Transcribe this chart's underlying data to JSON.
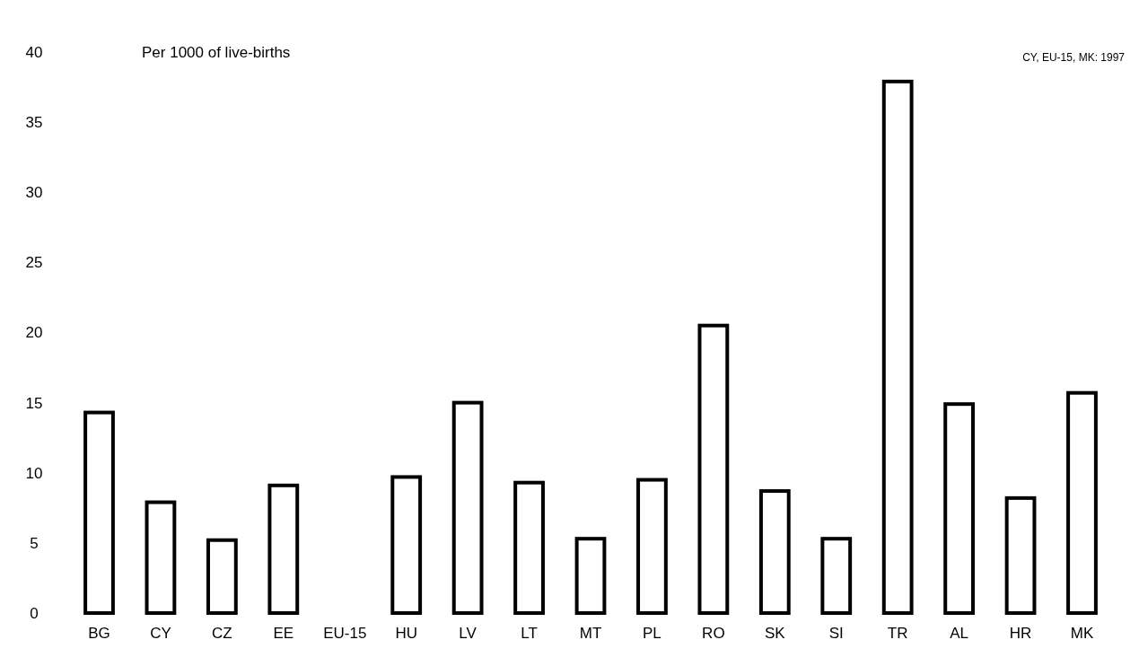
{
  "chart_data": {
    "type": "bar",
    "ylabel": "Per 1000 of live-births",
    "annotations": [
      "CY, EU-15, MK: 1997"
    ],
    "categories": [
      "BG",
      "CY",
      "CZ",
      "EE",
      "EU-15",
      "HU",
      "LV",
      "LT",
      "MT",
      "PL",
      "RO",
      "SK",
      "SI",
      "TR",
      "AL",
      "HR",
      "MK"
    ],
    "values": [
      14.3,
      7.9,
      5.2,
      9.1,
      null,
      9.7,
      15.0,
      9.3,
      5.3,
      9.5,
      20.5,
      8.7,
      5.3,
      37.9,
      14.9,
      8.2,
      15.7
    ],
    "color": "#ffffff",
    "ylim": [
      0,
      40
    ],
    "yticks": [
      0,
      5,
      10,
      15,
      20,
      25,
      30,
      35,
      40
    ],
    "grid": false
  }
}
